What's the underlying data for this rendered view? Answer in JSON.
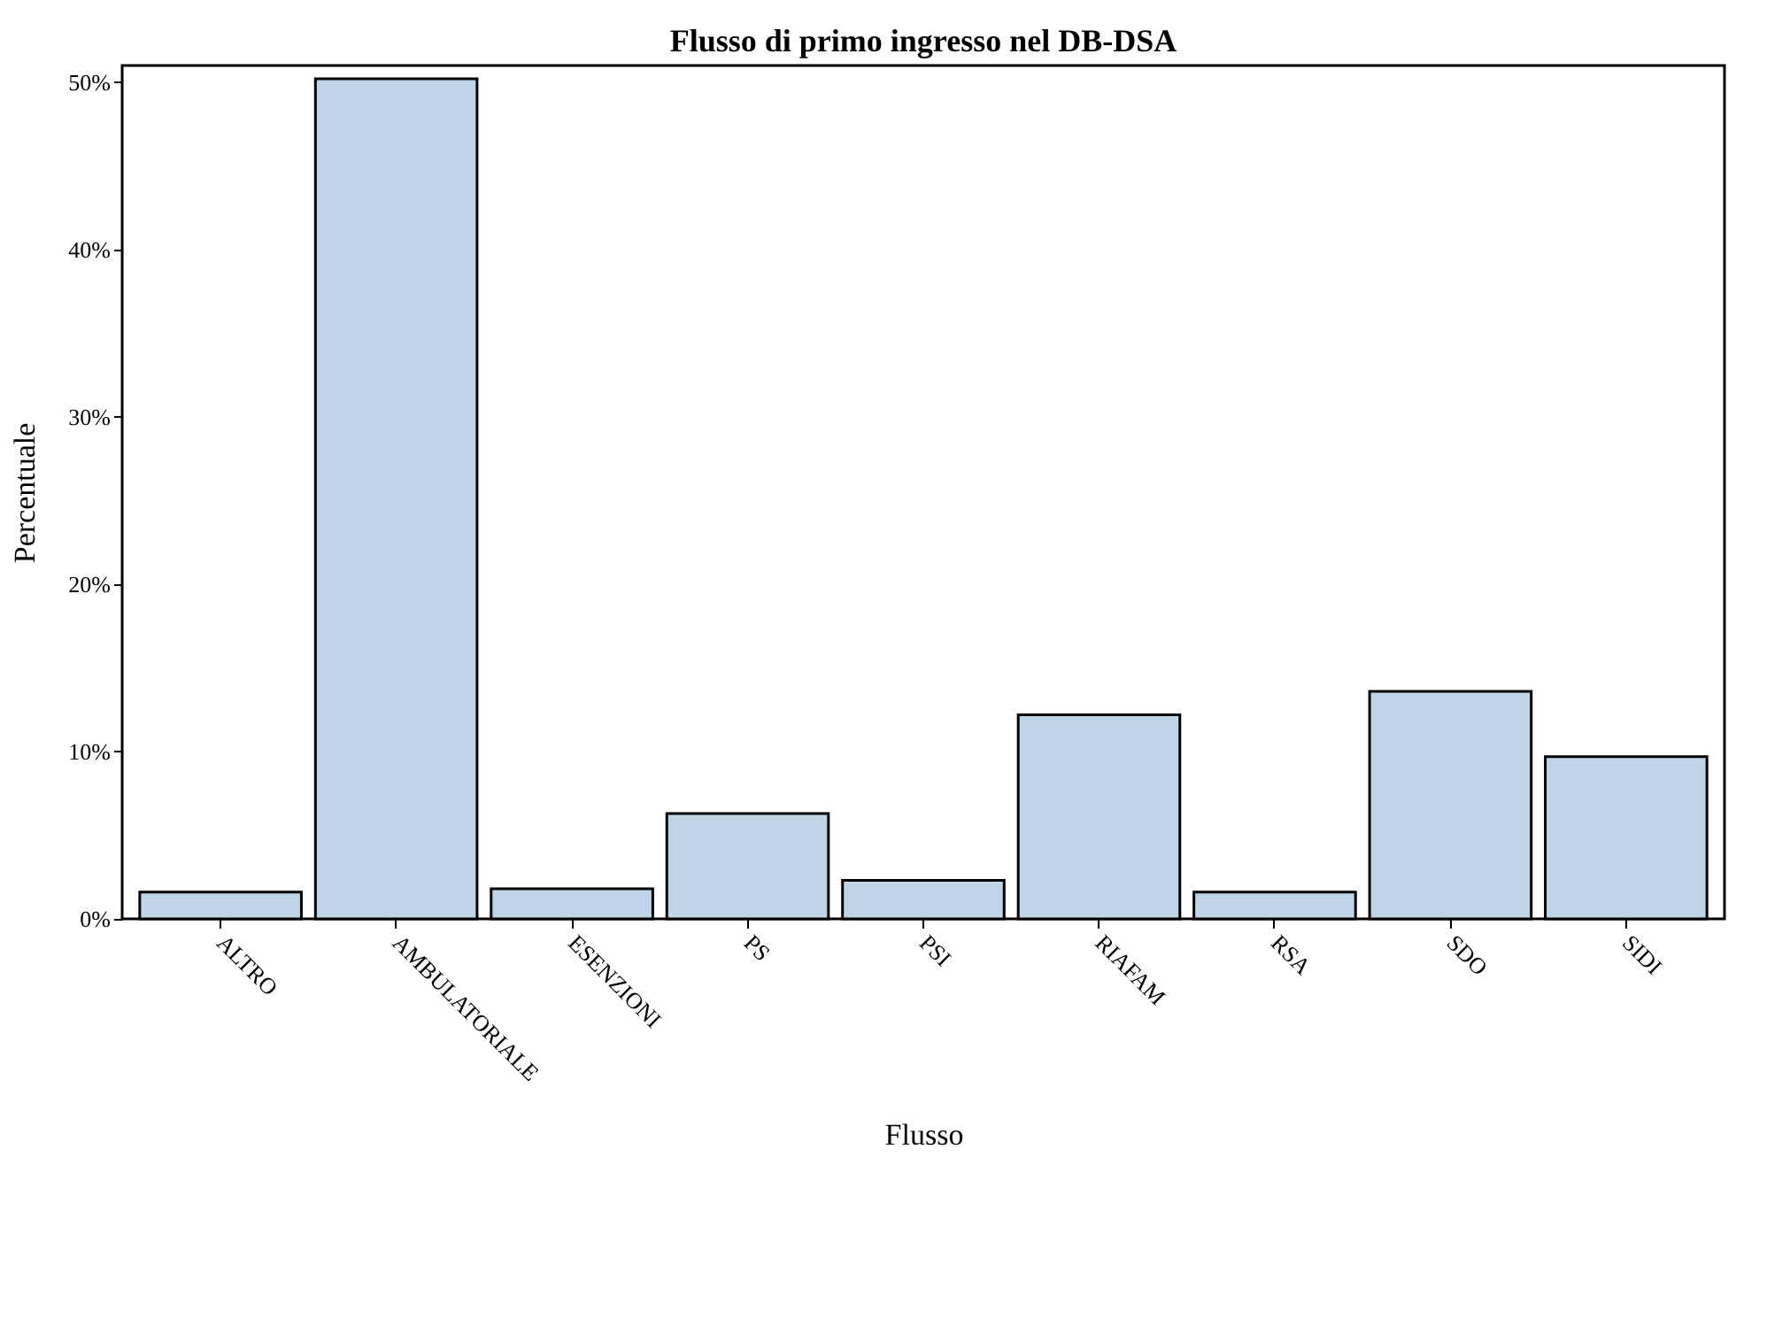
{
  "chart_data": {
    "type": "bar",
    "title": "Flusso di primo ingresso nel DB-DSA",
    "xlabel": "Flusso",
    "ylabel": "Percentuale",
    "categories": [
      "ALTRO",
      "AMBULATORIALE",
      "ESENZIONI",
      "PS",
      "PSI",
      "RIAFAM",
      "RSA",
      "SDO",
      "SIDI"
    ],
    "values": [
      1.6,
      50.2,
      1.8,
      6.3,
      2.3,
      12.2,
      1.6,
      13.6,
      9.7
    ],
    "color": "#c0d4e8",
    "ylim": [
      0,
      51
    ],
    "yticks": [
      {
        "value": 0,
        "label": "0%"
      },
      {
        "value": 10,
        "label": "10%"
      },
      {
        "value": 20,
        "label": "20%"
      },
      {
        "value": 30,
        "label": "30%"
      },
      {
        "value": 40,
        "label": "40%"
      },
      {
        "value": 50,
        "label": "50%"
      }
    ],
    "grid": false
  }
}
